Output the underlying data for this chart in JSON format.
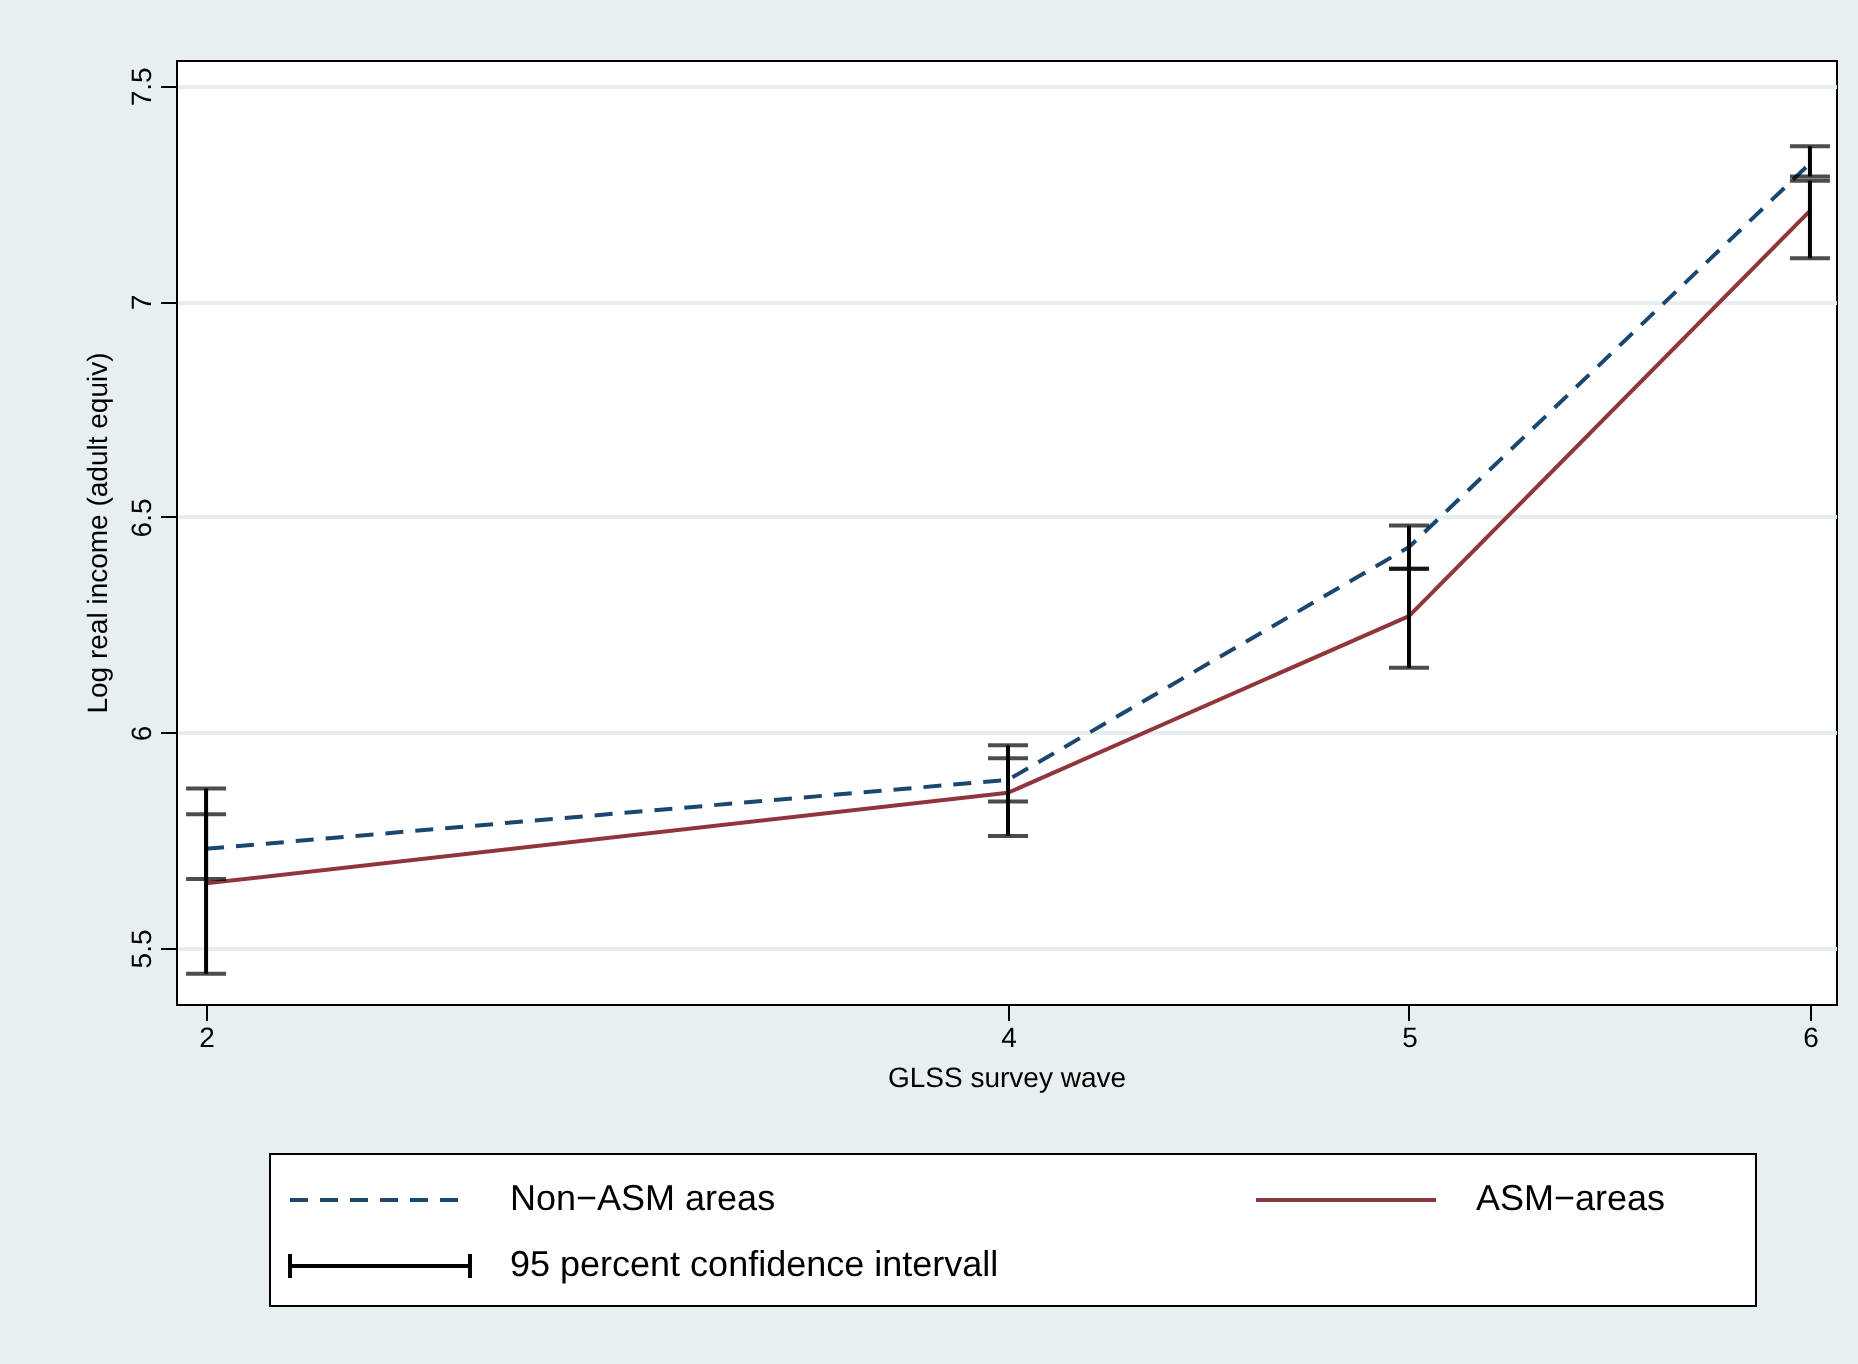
{
  "chart_data": {
    "type": "line",
    "xlabel": "GLSS survey wave",
    "ylabel": "Log real income (adult equiv)",
    "x": [
      2,
      4,
      5,
      6
    ],
    "xlim": [
      1.925,
      6.065
    ],
    "xticks": [
      2,
      4,
      5,
      6
    ],
    "ylim": [
      5.37,
      7.56
    ],
    "yticks": [
      5.5,
      6,
      6.5,
      7,
      7.5
    ],
    "grid": "y",
    "legend": "bottom",
    "marker": "none",
    "series": [
      {
        "name": "Non−ASM areas",
        "color": "#1a476f",
        "line_style": "dashed",
        "values": [
          5.73,
          5.89,
          6.43,
          7.32
        ],
        "errors": [
          [
            5.66,
            5.81
          ],
          [
            5.84,
            5.94
          ],
          [
            6.38,
            6.48
          ],
          [
            7.29,
            7.36
          ]
        ]
      },
      {
        "name": "ASM−areas",
        "color": "#90353b",
        "line_style": "solid",
        "values": [
          5.65,
          5.86,
          6.27,
          7.21
        ],
        "errors": [
          [
            5.44,
            5.87
          ],
          [
            5.76,
            5.97
          ],
          [
            6.15,
            6.38
          ],
          [
            7.1,
            7.28
          ]
        ]
      }
    ],
    "annotations": [
      "95 percent confidence intervall"
    ]
  }
}
